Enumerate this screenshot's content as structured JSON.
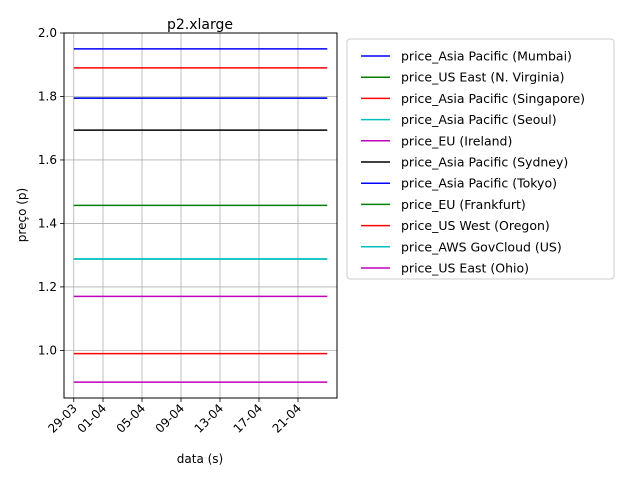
{
  "chart_data": {
    "type": "line",
    "title": "p2.xlarge",
    "xlabel": "data (s)",
    "ylabel": "preço (p)",
    "x_start": "2017-03-29",
    "x_end": "2017-04-24",
    "xlim": [
      "2017-03-28",
      "2017-04-25"
    ],
    "xticks": [
      {
        "date": "2017-03-29",
        "label": "29-03"
      },
      {
        "date": "2017-04-01",
        "label": "01-04"
      },
      {
        "date": "2017-04-05",
        "label": "05-04"
      },
      {
        "date": "2017-04-09",
        "label": "09-04"
      },
      {
        "date": "2017-04-13",
        "label": "13-04"
      },
      {
        "date": "2017-04-17",
        "label": "17-04"
      },
      {
        "date": "2017-04-21",
        "label": "21-04"
      }
    ],
    "ylim": [
      0.85,
      2.0
    ],
    "yticks": [
      1.0,
      1.2,
      1.4,
      1.6,
      1.8,
      2.0
    ],
    "ytick_labels": [
      "1.0",
      "1.2",
      "1.4",
      "1.6",
      "1.8",
      "2.0"
    ],
    "grid": true,
    "legend_position": "outside-right",
    "series": [
      {
        "name": "price_Asia Pacific (Mumbai)",
        "color": "#0000ff",
        "value": 1.95
      },
      {
        "name": "price_US East (N. Virginia)",
        "color": "#008000",
        "value": 1.795
      },
      {
        "name": "price_Asia Pacific (Singapore)",
        "color": "#ff0000",
        "value": 1.89
      },
      {
        "name": "price_Asia Pacific (Seoul)",
        "color": "#00bfbf",
        "value": 1.288
      },
      {
        "name": "price_EU (Ireland)",
        "color": "#bf00bf",
        "value": 1.17
      },
      {
        "name": "price_Asia Pacific (Sydney)",
        "color": "#000000",
        "value": 1.694
      },
      {
        "name": "price_Asia Pacific (Tokyo)",
        "color": "#0000ff",
        "value": 1.795
      },
      {
        "name": "price_EU (Frankfurt)",
        "color": "#008000",
        "value": 1.457
      },
      {
        "name": "price_US West (Oregon)",
        "color": "#ff0000",
        "value": 0.99
      },
      {
        "name": "price_AWS GovCloud (US)",
        "color": "#00bfbf",
        "value": 1.288
      },
      {
        "name": "price_US East (Ohio)",
        "color": "#bf00bf",
        "value": 0.9
      }
    ]
  }
}
